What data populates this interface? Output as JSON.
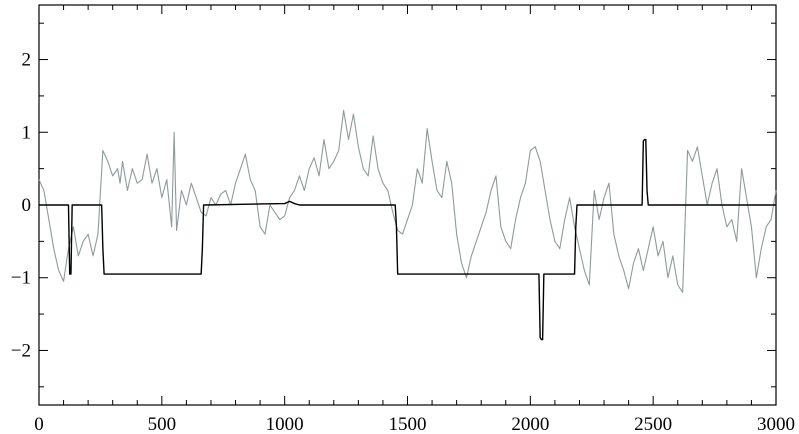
{
  "chart_data": {
    "type": "line",
    "title": "",
    "xlabel": "",
    "ylabel": "",
    "xlim": [
      0,
      3000
    ],
    "ylim": [
      -2.75,
      2.75
    ],
    "grid": false,
    "legend": "none",
    "x_ticks": [
      0,
      500,
      1000,
      1500,
      2000,
      2500,
      3000
    ],
    "x_tick_labels": [
      "0",
      "500",
      "1000",
      "1500",
      "2000",
      "2500",
      "3000"
    ],
    "y_ticks": [
      -2,
      -1,
      0,
      1,
      2
    ],
    "y_tick_labels": [
      "−2",
      "−1",
      "0",
      "1",
      "2"
    ],
    "series": [
      {
        "color": "#8f9a9a",
        "x": [
          0,
          20,
          40,
          60,
          80,
          100,
          120,
          140,
          160,
          180,
          200,
          220,
          240,
          260,
          280,
          300,
          320,
          330,
          340,
          360,
          380,
          400,
          420,
          440,
          460,
          480,
          500,
          520,
          540,
          550,
          560,
          580,
          600,
          620,
          640,
          660,
          680,
          700,
          720,
          740,
          760,
          780,
          800,
          820,
          840,
          860,
          880,
          900,
          920,
          940,
          960,
          980,
          1000,
          1020,
          1040,
          1060,
          1080,
          1100,
          1120,
          1140,
          1160,
          1180,
          1200,
          1220,
          1240,
          1260,
          1280,
          1300,
          1320,
          1340,
          1360,
          1380,
          1400,
          1420,
          1440,
          1460,
          1480,
          1500,
          1520,
          1540,
          1560,
          1580,
          1600,
          1620,
          1640,
          1660,
          1680,
          1700,
          1720,
          1740,
          1760,
          1780,
          1800,
          1820,
          1840,
          1860,
          1880,
          1900,
          1920,
          1940,
          1960,
          1980,
          2000,
          2020,
          2040,
          2060,
          2080,
          2100,
          2120,
          2140,
          2160,
          2180,
          2200,
          2220,
          2240,
          2260,
          2280,
          2300,
          2320,
          2340,
          2360,
          2380,
          2400,
          2420,
          2440,
          2460,
          2480,
          2500,
          2520,
          2540,
          2560,
          2580,
          2600,
          2620,
          2640,
          2660,
          2680,
          2700,
          2720,
          2740,
          2760,
          2780,
          2800,
          2820,
          2840,
          2860,
          2880,
          2900,
          2920,
          2940,
          2960,
          2980,
          3000
        ],
        "y": [
          0.35,
          0.2,
          -0.2,
          -0.6,
          -0.9,
          -1.05,
          -0.6,
          -0.3,
          -0.7,
          -0.5,
          -0.4,
          -0.7,
          -0.4,
          0.75,
          0.6,
          0.4,
          0.5,
          0.3,
          0.6,
          0.2,
          0.5,
          0.3,
          0.35,
          0.7,
          0.3,
          0.5,
          0.1,
          0.35,
          -0.3,
          1.0,
          -0.35,
          0.2,
          0.0,
          0.3,
          0.1,
          -0.1,
          -0.15,
          0.1,
          0.0,
          0.15,
          0.2,
          0.0,
          0.3,
          0.5,
          0.7,
          0.35,
          0.2,
          -0.3,
          -0.4,
          0.0,
          -0.1,
          -0.2,
          -0.15,
          0.1,
          0.2,
          0.4,
          0.2,
          0.5,
          0.65,
          0.4,
          0.9,
          0.5,
          0.6,
          0.75,
          1.3,
          0.9,
          1.25,
          0.8,
          0.5,
          0.4,
          0.95,
          0.5,
          0.3,
          0.2,
          -0.1,
          -0.35,
          -0.4,
          -0.2,
          0.0,
          0.5,
          0.3,
          1.05,
          0.6,
          0.2,
          0.1,
          0.6,
          0.3,
          -0.4,
          -0.8,
          -1.0,
          -0.7,
          -0.5,
          -0.3,
          -0.1,
          0.2,
          0.4,
          -0.3,
          -0.5,
          -0.6,
          -0.2,
          0.1,
          0.3,
          0.75,
          0.8,
          0.6,
          0.2,
          -0.2,
          -0.5,
          -0.6,
          -0.2,
          0.1,
          -0.3,
          -0.6,
          -0.9,
          -1.1,
          0.2,
          -0.2,
          0.1,
          0.3,
          -0.4,
          -0.7,
          -0.9,
          -1.15,
          -0.8,
          -0.6,
          -0.9,
          -0.6,
          -0.3,
          -0.7,
          -0.5,
          -1.0,
          -0.7,
          -1.1,
          -1.2,
          0.75,
          0.6,
          0.8,
          0.4,
          0.0,
          0.3,
          0.5,
          0.0,
          -0.3,
          -0.2,
          -0.5,
          0.5,
          0.1,
          -0.3,
          -1.0,
          -0.6,
          -0.3,
          -0.2,
          0.2
        ]
      },
      {
        "color": "#000000",
        "x": [
          0,
          120,
          125,
          130,
          135,
          140,
          255,
          260,
          265,
          270,
          650,
          660,
          665,
          670,
          675,
          1000,
          1020,
          1040,
          1060,
          1330,
          1450,
          1455,
          1460,
          1465,
          2030,
          2035,
          2040,
          2045,
          2050,
          2055,
          2060,
          2170,
          2180,
          2185,
          2190,
          2455,
          2460,
          2465,
          2470,
          2475,
          2480,
          2485,
          3000
        ],
        "y": [
          0,
          0,
          -0.95,
          -0.95,
          0,
          0,
          0,
          -0.6,
          -0.95,
          -0.95,
          -0.95,
          -0.95,
          -0.6,
          0,
          0,
          0.02,
          0.05,
          0.02,
          0,
          0,
          0,
          -0.3,
          -0.95,
          -0.95,
          -0.95,
          -0.95,
          -1.82,
          -1.85,
          -1.85,
          -0.95,
          -0.95,
          -0.95,
          -0.95,
          -0.3,
          0,
          0,
          0.88,
          0.9,
          0.9,
          0.2,
          0,
          0,
          0
        ]
      }
    ]
  }
}
